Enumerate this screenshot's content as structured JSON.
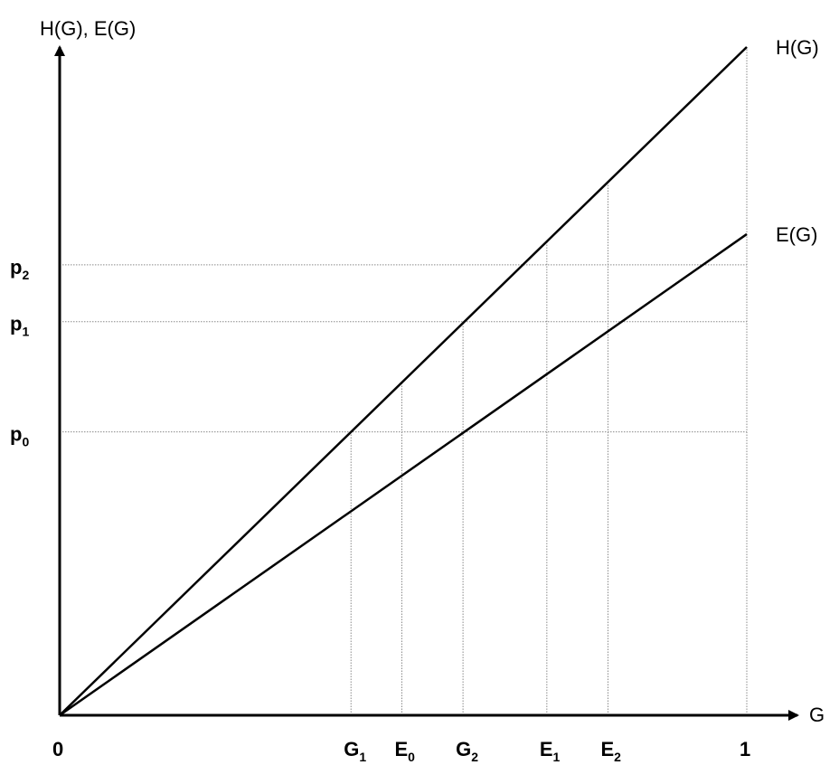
{
  "chart_data": {
    "type": "line",
    "title": "",
    "xlabel": "G",
    "ylabel": "H(G), E(G)",
    "xlim": [
      0,
      1
    ],
    "ylim": [
      0,
      1
    ],
    "grid": false,
    "legend": "none",
    "origin_label": "0",
    "series": [
      {
        "name": "H(G)",
        "x": [
          0,
          1
        ],
        "y": [
          0,
          1.0
        ]
      },
      {
        "name": "E(G)",
        "x": [
          0,
          1
        ],
        "y": [
          0,
          0.72
        ]
      }
    ],
    "x_marks": [
      {
        "base": "G",
        "sub": "1",
        "x": 0.424
      },
      {
        "base": "E",
        "sub": "0",
        "x": 0.498
      },
      {
        "base": "G",
        "sub": "2",
        "x": 0.587
      },
      {
        "base": "E",
        "sub": "1",
        "x": 0.709
      },
      {
        "base": "E",
        "sub": "2",
        "x": 0.798
      },
      {
        "base": "1",
        "sub": "",
        "x": 1.0
      }
    ],
    "y_marks": [
      {
        "base": "p",
        "sub": "2",
        "y": 0.674
      },
      {
        "base": "p",
        "sub": "1",
        "y": 0.589
      },
      {
        "base": "p",
        "sub": "0",
        "y": 0.424
      }
    ],
    "colors": {
      "line": "#000000",
      "guide": "#8a8a8a"
    }
  }
}
